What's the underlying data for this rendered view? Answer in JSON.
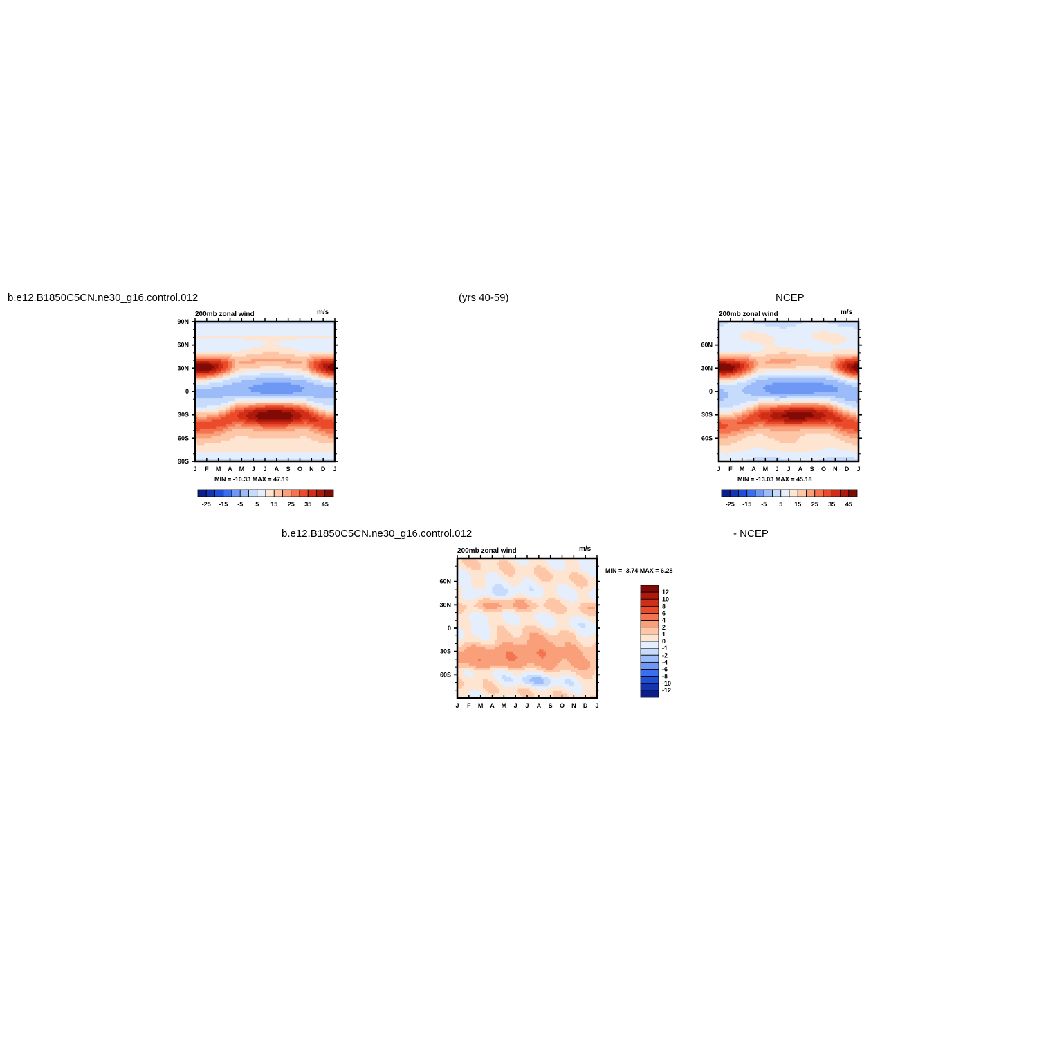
{
  "header": {
    "case_name": "b.e12.B1850C5CN.ne30_g16.control.012",
    "years": "(yrs 40-59)",
    "obs_name": "NCEP",
    "diff_case_name": "b.e12.B1850C5CN.ne30_g16.control.012",
    "diff_obs_name": "- NCEP"
  },
  "colors": {
    "blues": [
      "#0b1f8c",
      "#1434b0",
      "#1f4fd6",
      "#3a6ef0",
      "#6f98f5",
      "#9cbcf9",
      "#c7dbfc",
      "#e4eefd"
    ],
    "reds": [
      "#fde5d2",
      "#fcc6a7",
      "#f9a07b",
      "#f47450",
      "#ea4b2a",
      "#d02e17",
      "#ad1a0c",
      "#800a05"
    ]
  },
  "chart_data": [
    {
      "type": "heatmap",
      "title_left": "200mb zonal wind",
      "title_right": "m/s",
      "x_tick_labels": [
        "J",
        "F",
        "M",
        "A",
        "M",
        "J",
        "J",
        "A",
        "S",
        "O",
        "N",
        "D",
        "J"
      ],
      "y_tick_labels": [
        "90N",
        "60N",
        "30N",
        "0",
        "30S",
        "60S",
        "90S"
      ],
      "ylim": [
        -90,
        90
      ],
      "stats": "MIN = -10.33 MAX = 47.19",
      "min": -10.33,
      "max": 47.19,
      "colorbar_labels": [
        "-25",
        "-15",
        "-5",
        "5",
        "15",
        "25",
        "35",
        "45"
      ],
      "colorbar_orientation": "horizontal",
      "features": [
        {
          "lat": 30,
          "month": 0.5,
          "value": 44
        },
        {
          "lat": 30,
          "month": 11.5,
          "value": 42
        },
        {
          "lat": -30,
          "month": 6.5,
          "value": 47
        },
        {
          "lat": 3,
          "month": 6.8,
          "value": -10
        }
      ]
    },
    {
      "type": "heatmap",
      "title_left": "200mb zonal wind",
      "title_right": "m/s",
      "x_tick_labels": [
        "J",
        "F",
        "M",
        "A",
        "M",
        "J",
        "J",
        "A",
        "S",
        "O",
        "N",
        "D",
        "J"
      ],
      "y_tick_labels": [
        "60N",
        "30N",
        "0",
        "30S",
        "60S"
      ],
      "ylim": [
        -90,
        90
      ],
      "stats": "MIN = -13.03 MAX = 45.18",
      "min": -13.03,
      "max": 45.18,
      "colorbar_labels": [
        "-25",
        "-15",
        "-5",
        "5",
        "15",
        "25",
        "35",
        "45"
      ],
      "colorbar_orientation": "horizontal",
      "features": [
        {
          "lat": 30,
          "month": 0.5,
          "value": 45
        },
        {
          "lat": 30,
          "month": 11.5,
          "value": 40
        },
        {
          "lat": -30,
          "month": 6.5,
          "value": 42
        },
        {
          "lat": 5,
          "month": 7,
          "value": -13
        }
      ]
    },
    {
      "type": "heatmap",
      "title_left": "200mb zonal wind",
      "title_right": "m/s",
      "x_tick_labels": [
        "J",
        "F",
        "M",
        "A",
        "M",
        "J",
        "J",
        "A",
        "S",
        "O",
        "N",
        "D",
        "J"
      ],
      "y_tick_labels": [
        "60N",
        "30N",
        "0",
        "30S",
        "60S"
      ],
      "ylim": [
        -90,
        90
      ],
      "stats": "MIN = -3.74 MAX = 6.28",
      "min": -3.74,
      "max": 6.28,
      "colorbar_labels": [
        "12",
        "10",
        "8",
        "6",
        "4",
        "2",
        "1",
        "0",
        "-1",
        "-2",
        "-4",
        "-6",
        "-8",
        "-10",
        "-12"
      ],
      "colorbar_orientation": "vertical"
    }
  ]
}
